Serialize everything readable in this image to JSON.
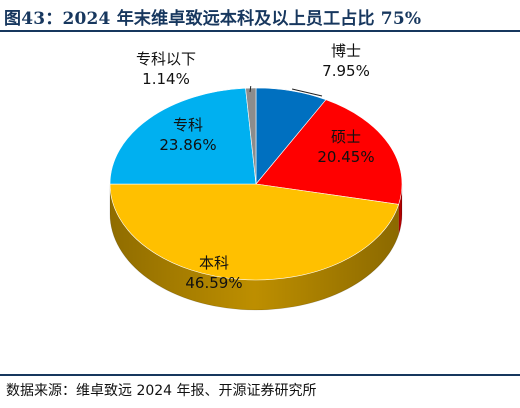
{
  "title": "图43：2024 年末维卓致远本科及以上员工占比 75%",
  "source": "数据来源：维卓致远 2024 年报、开源证券研究所",
  "colors": {
    "accent": "#17375e"
  },
  "chart_data": {
    "type": "pie",
    "title": "",
    "series": [
      {
        "name": "博士",
        "label": "7.95%",
        "value": 7.95,
        "color": "#0070c0"
      },
      {
        "name": "硕士",
        "label": "20.45%",
        "value": 20.45,
        "color": "#ff0000"
      },
      {
        "name": "本科",
        "label": "46.59%",
        "value": 46.59,
        "color": "#ffc000"
      },
      {
        "name": "专科",
        "label": "23.86%",
        "value": 23.86,
        "color": "#00b0f0"
      },
      {
        "name": "专科以下",
        "label": "1.14%",
        "value": 1.14,
        "color": "#8c8c8c"
      }
    ]
  }
}
